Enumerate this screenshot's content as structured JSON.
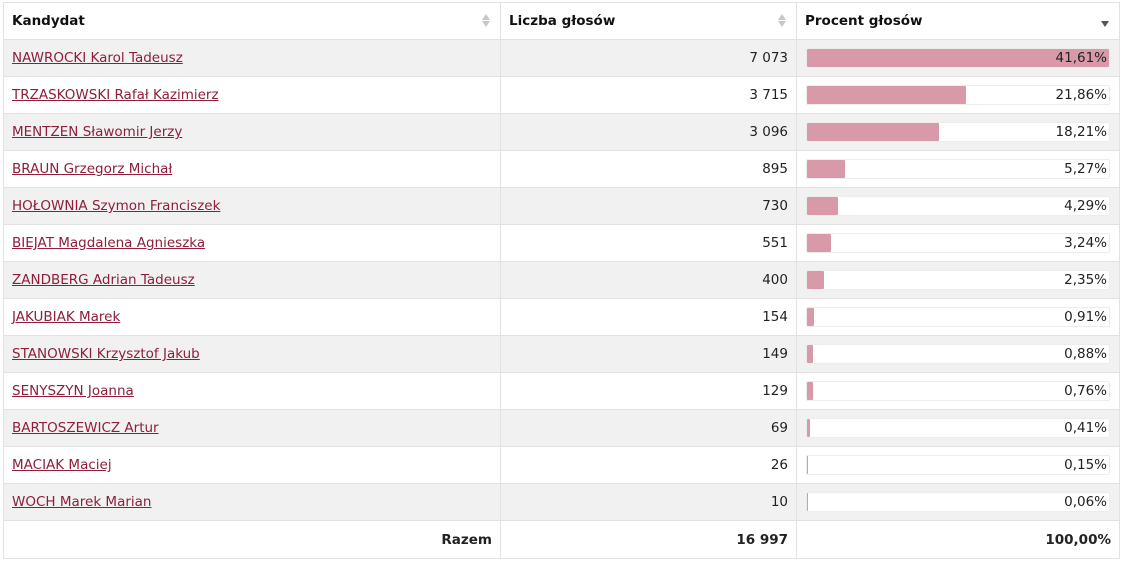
{
  "columns": {
    "candidate": "Kandydat",
    "votes": "Liczba głosów",
    "percent": "Procent głosów"
  },
  "rows": [
    {
      "name": "NAWROCKI Karol Tadeusz",
      "votes": "7 073",
      "percent": "41,61%",
      "pct": 41.61
    },
    {
      "name": "TRZASKOWSKI Rafał Kazimierz",
      "votes": "3 715",
      "percent": "21,86%",
      "pct": 21.86
    },
    {
      "name": "MENTZEN Sławomir Jerzy",
      "votes": "3 096",
      "percent": "18,21%",
      "pct": 18.21
    },
    {
      "name": "BRAUN Grzegorz Michał",
      "votes": "895",
      "percent": "5,27%",
      "pct": 5.27
    },
    {
      "name": "HOŁOWNIA Szymon Franciszek",
      "votes": "730",
      "percent": "4,29%",
      "pct": 4.29
    },
    {
      "name": "BIEJAT Magdalena Agnieszka",
      "votes": "551",
      "percent": "3,24%",
      "pct": 3.24
    },
    {
      "name": "ZANDBERG Adrian Tadeusz",
      "votes": "400",
      "percent": "2,35%",
      "pct": 2.35
    },
    {
      "name": "JAKUBIAK Marek",
      "votes": "154",
      "percent": "0,91%",
      "pct": 0.91
    },
    {
      "name": "STANOWSKI Krzysztof Jakub",
      "votes": "149",
      "percent": "0,88%",
      "pct": 0.88
    },
    {
      "name": "SENYSZYN Joanna",
      "votes": "129",
      "percent": "0,76%",
      "pct": 0.76
    },
    {
      "name": "BARTOSZEWICZ Artur",
      "votes": "69",
      "percent": "0,41%",
      "pct": 0.41
    },
    {
      "name": "MACIAK Maciej",
      "votes": "26",
      "percent": "0,15%",
      "pct": 0.15
    },
    {
      "name": "WOCH Marek Marian",
      "votes": "10",
      "percent": "0,06%",
      "pct": 0.06
    }
  ],
  "footer": {
    "label": "Razem",
    "votes": "16 997",
    "percent": "100,00%"
  },
  "colors": {
    "link": "#8e1e3a",
    "bar_fill": "#d89aa8",
    "row_alt": "#f1f1f1"
  },
  "sort": {
    "column": "percent",
    "direction": "descending"
  }
}
